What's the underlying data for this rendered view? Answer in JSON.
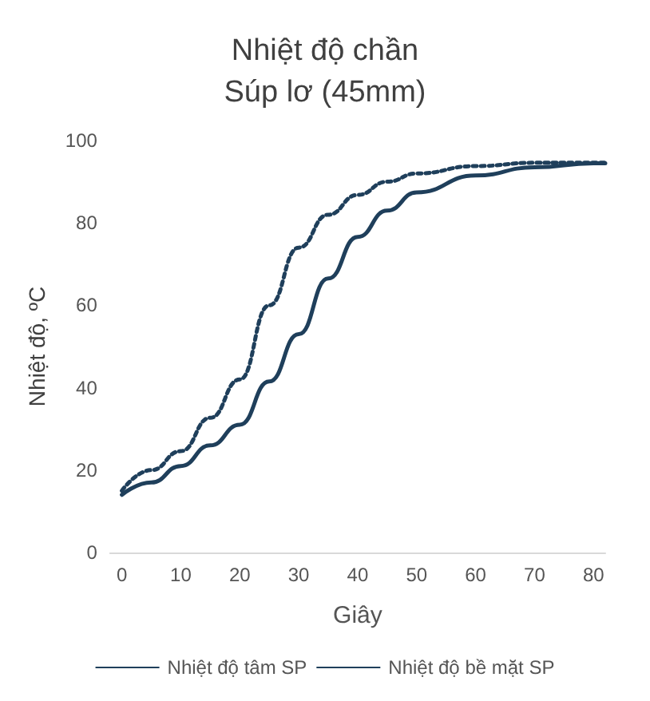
{
  "chart_data": {
    "type": "line",
    "title": "Nhiệt độ chần\nSúp lơ (45mm)",
    "xlabel": "Giây",
    "ylabel": "Nhiệt độ, ºC",
    "x": [
      0,
      5,
      10,
      15,
      20,
      25,
      30,
      35,
      40,
      45,
      50,
      60,
      70,
      80,
      82
    ],
    "series": [
      {
        "name": "Nhiệt độ tâm SP",
        "color": "#1f3f5b",
        "line_style": "solid",
        "values": [
          14,
          17,
          21,
          26,
          31,
          41.5,
          53,
          66.5,
          76.6,
          83,
          87.4,
          91.5,
          93.5,
          94.5,
          94.5
        ]
      },
      {
        "name": "Nhiệt độ bề mặt SP",
        "color": "#1f3f5b",
        "line_style": "dotted",
        "values": [
          15,
          20,
          24.6,
          32.7,
          42,
          60,
          74,
          82,
          86.8,
          90,
          92,
          93.8,
          94.6,
          94.6,
          94.6
        ]
      }
    ],
    "xlim": [
      -2,
      82
    ],
    "xticks": [
      0,
      10,
      20,
      30,
      40,
      50,
      60,
      70,
      80
    ],
    "ylim": [
      0,
      100
    ],
    "yticks": [
      0,
      20,
      40,
      60,
      80,
      100
    ],
    "grid": false,
    "legend": "bottom",
    "marker": "none"
  }
}
